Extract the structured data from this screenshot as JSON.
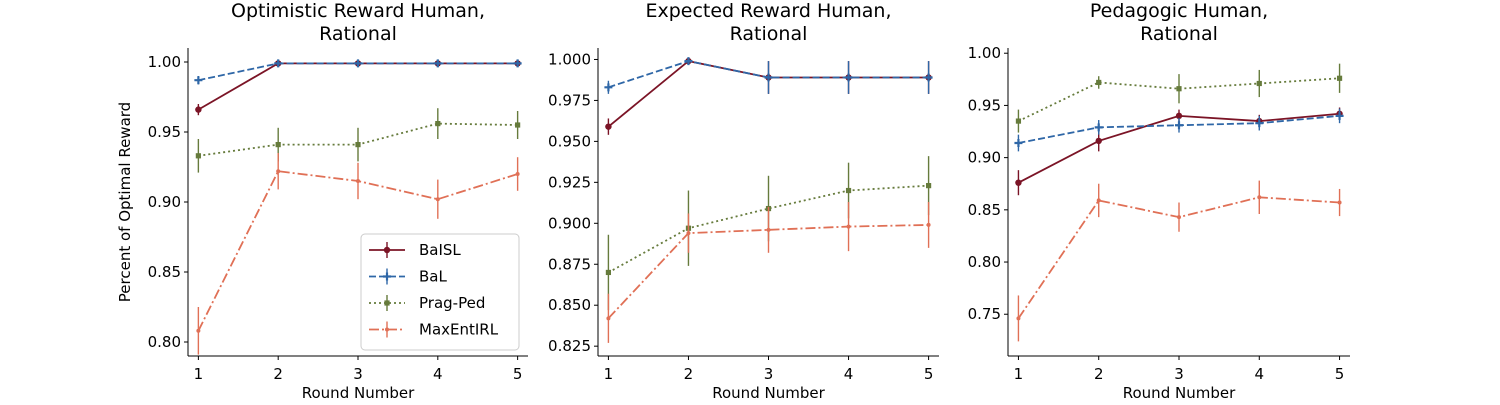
{
  "chart_data": [
    {
      "type": "line",
      "title_lines": [
        "Optimistic Reward Human,",
        "Rational"
      ],
      "xlabel": "Round Number",
      "ylabel": "Percent of Optimal Reward",
      "x": [
        1,
        2,
        3,
        4,
        5
      ],
      "xticks": [
        "1",
        "2",
        "3",
        "4",
        "5"
      ],
      "ylim": [
        0.79,
        1.01
      ],
      "yticks": [
        0.8,
        0.85,
        0.9,
        0.95,
        1.0
      ],
      "yticklabels": [
        "0.80",
        "0.85",
        "0.90",
        "0.95",
        "1.00"
      ],
      "grid": false,
      "legend": "lower-right",
      "series": [
        {
          "name": "BaISL",
          "color": "#7b1426",
          "style": "solid",
          "marker": "circle",
          "values": [
            0.966,
            0.999,
            0.999,
            0.999,
            0.999
          ],
          "err": [
            0.004,
            0.001,
            0.001,
            0.001,
            0.001
          ]
        },
        {
          "name": "BaL",
          "color": "#2f67a7",
          "style": "dashed",
          "marker": "plus",
          "values": [
            0.987,
            0.999,
            0.999,
            0.999,
            0.999
          ],
          "err": [
            0.003,
            0.001,
            0.001,
            0.001,
            0.001
          ]
        },
        {
          "name": "Prag-Ped",
          "color": "#667b3c",
          "style": "dotted",
          "marker": "square",
          "values": [
            0.933,
            0.941,
            0.941,
            0.956,
            0.955
          ],
          "err": [
            0.012,
            0.012,
            0.012,
            0.011,
            0.01
          ]
        },
        {
          "name": "MaxEntIRL",
          "color": "#e07056",
          "style": "dashdot",
          "marker": "point",
          "values": [
            0.808,
            0.922,
            0.915,
            0.902,
            0.92
          ],
          "err": [
            0.017,
            0.013,
            0.013,
            0.014,
            0.012
          ]
        }
      ]
    },
    {
      "type": "line",
      "title_lines": [
        "Expected Reward Human,",
        "Rational"
      ],
      "xlabel": "Round Number",
      "ylabel": "",
      "x": [
        1,
        2,
        3,
        4,
        5
      ],
      "xticks": [
        "1",
        "2",
        "3",
        "4",
        "5"
      ],
      "ylim": [
        0.819,
        1.007
      ],
      "yticks": [
        0.825,
        0.85,
        0.875,
        0.9,
        0.925,
        0.95,
        0.975,
        1.0
      ],
      "yticklabels": [
        "0.825",
        "0.850",
        "0.875",
        "0.900",
        "0.925",
        "0.950",
        "0.975",
        "1.000"
      ],
      "grid": false,
      "series": [
        {
          "name": "BaISL",
          "color": "#7b1426",
          "style": "solid",
          "marker": "circle",
          "values": [
            0.959,
            0.999,
            0.989,
            0.989,
            0.989
          ],
          "err": [
            0.005,
            0.001,
            0.01,
            0.01,
            0.01
          ]
        },
        {
          "name": "BaL",
          "color": "#2f67a7",
          "style": "dashed",
          "marker": "plus",
          "values": [
            0.983,
            0.999,
            0.989,
            0.989,
            0.989
          ],
          "err": [
            0.004,
            0.001,
            0.01,
            0.01,
            0.01
          ]
        },
        {
          "name": "Prag-Ped",
          "color": "#667b3c",
          "style": "dotted",
          "marker": "square",
          "values": [
            0.87,
            0.897,
            0.909,
            0.92,
            0.923
          ],
          "err": [
            0.023,
            0.023,
            0.02,
            0.017,
            0.018
          ]
        },
        {
          "name": "MaxEntIRL",
          "color": "#e07056",
          "style": "dashdot",
          "marker": "point",
          "values": [
            0.842,
            0.894,
            0.896,
            0.898,
            0.899
          ],
          "err": [
            0.015,
            0.012,
            0.014,
            0.015,
            0.014
          ]
        }
      ]
    },
    {
      "type": "line",
      "title_lines": [
        "Pedagogic Human,",
        "Rational"
      ],
      "xlabel": "Round Number",
      "ylabel": "",
      "x": [
        1,
        2,
        3,
        4,
        5
      ],
      "xticks": [
        "1",
        "2",
        "3",
        "4",
        "5"
      ],
      "ylim": [
        0.71,
        1.005
      ],
      "yticks": [
        0.75,
        0.8,
        0.85,
        0.9,
        0.95,
        1.0
      ],
      "yticklabels": [
        "0.75",
        "0.80",
        "0.85",
        "0.90",
        "0.95",
        "1.00"
      ],
      "grid": false,
      "series": [
        {
          "name": "BaISL",
          "color": "#7b1426",
          "style": "solid",
          "marker": "circle",
          "values": [
            0.876,
            0.916,
            0.94,
            0.935,
            0.942
          ],
          "err": [
            0.012,
            0.01,
            0.006,
            0.006,
            0.006
          ]
        },
        {
          "name": "BaL",
          "color": "#2f67a7",
          "style": "dashed",
          "marker": "plus",
          "values": [
            0.914,
            0.929,
            0.931,
            0.933,
            0.94
          ],
          "err": [
            0.008,
            0.007,
            0.007,
            0.007,
            0.007
          ]
        },
        {
          "name": "Prag-Ped",
          "color": "#667b3c",
          "style": "dotted",
          "marker": "square",
          "values": [
            0.935,
            0.972,
            0.966,
            0.971,
            0.976
          ],
          "err": [
            0.011,
            0.006,
            0.014,
            0.013,
            0.014
          ]
        },
        {
          "name": "MaxEntIRL",
          "color": "#e07056",
          "style": "dashdot",
          "marker": "point",
          "values": [
            0.746,
            0.859,
            0.843,
            0.862,
            0.857
          ],
          "err": [
            0.022,
            0.016,
            0.014,
            0.016,
            0.013
          ]
        }
      ]
    }
  ]
}
